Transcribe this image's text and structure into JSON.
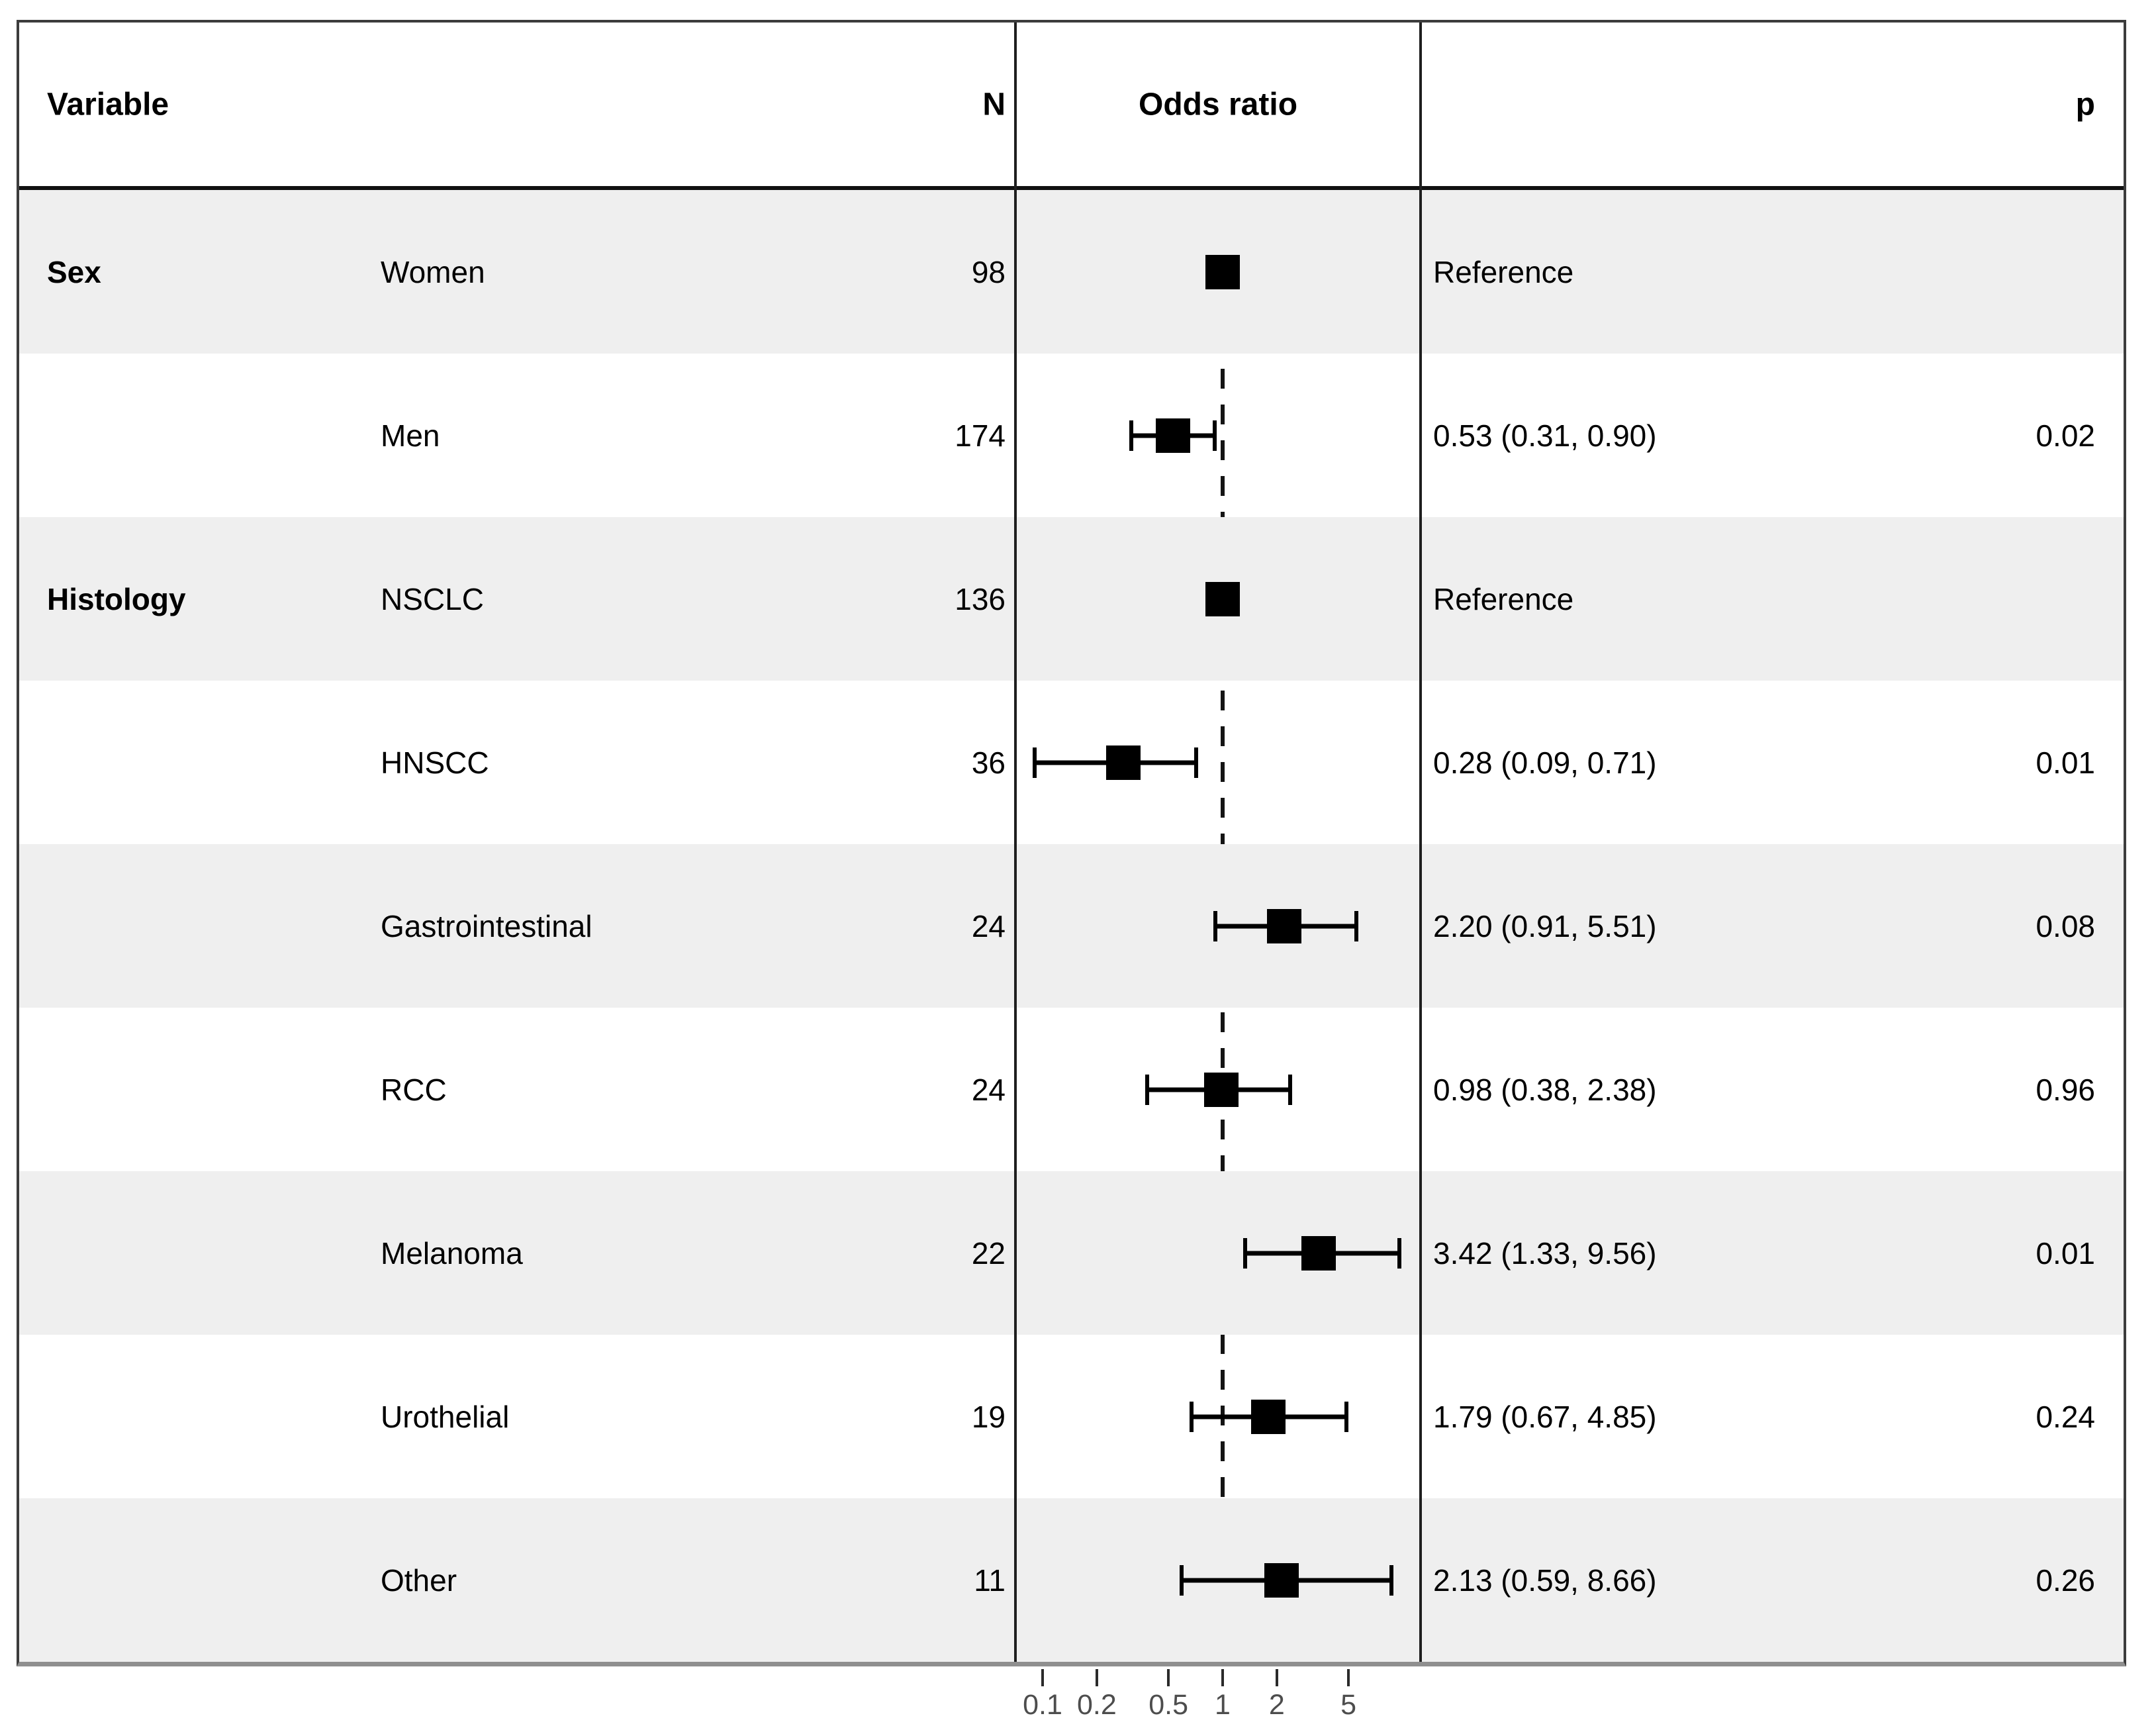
{
  "header": {
    "variable": "Variable",
    "n": "N",
    "odds_ratio": "Odds ratio",
    "p": "p"
  },
  "colors": {
    "zebra": "#efefef",
    "text": "#000000",
    "marker": "#000000",
    "axis_label": "#4d4d4d",
    "axis_line": "#8f8f8f",
    "frame_border": "#3c3c3c",
    "header_separator": "#111111",
    "reference_line": "#141414"
  },
  "chart_data": {
    "type": "scatter",
    "variant": "forest_plot_odds_ratio",
    "title": "",
    "xlabel": "",
    "x_scale": "log10",
    "x_tick_labels": [
      "0.1",
      "0.2",
      "0.5",
      "1",
      "2",
      "5"
    ],
    "x_tick_values": [
      0.1,
      0.2,
      0.5,
      1,
      2,
      5
    ],
    "x_range": [
      0.07,
      12
    ],
    "reference_line": 1,
    "legend": "none",
    "rows": [
      {
        "group": "Sex",
        "label": "Women",
        "n": "98",
        "or": 1,
        "ci_low": null,
        "ci_high": null,
        "estimate": "Reference",
        "p": ""
      },
      {
        "group": "",
        "label": "Men",
        "n": "174",
        "or": 0.53,
        "ci_low": 0.31,
        "ci_high": 0.9,
        "estimate": "0.53 (0.31, 0.90)",
        "p": "0.02"
      },
      {
        "group": "Histology",
        "label": "NSCLC",
        "n": "136",
        "or": 1,
        "ci_low": null,
        "ci_high": null,
        "estimate": "Reference",
        "p": ""
      },
      {
        "group": "",
        "label": "HNSCC",
        "n": "36",
        "or": 0.28,
        "ci_low": 0.09,
        "ci_high": 0.71,
        "estimate": "0.28 (0.09, 0.71)",
        "p": "0.01"
      },
      {
        "group": "",
        "label": "Gastrointestinal",
        "n": "24",
        "or": 2.2,
        "ci_low": 0.91,
        "ci_high": 5.51,
        "estimate": "2.20 (0.91, 5.51)",
        "p": "0.08"
      },
      {
        "group": "",
        "label": "RCC",
        "n": "24",
        "or": 0.98,
        "ci_low": 0.38,
        "ci_high": 2.38,
        "estimate": "0.98 (0.38, 2.38)",
        "p": "0.96"
      },
      {
        "group": "",
        "label": "Melanoma",
        "n": "22",
        "or": 3.42,
        "ci_low": 1.33,
        "ci_high": 9.56,
        "estimate": "3.42 (1.33, 9.56)",
        "p": "0.01"
      },
      {
        "group": "",
        "label": "Urothelial",
        "n": "19",
        "or": 1.79,
        "ci_low": 0.67,
        "ci_high": 4.85,
        "estimate": "1.79 (0.67, 4.85)",
        "p": "0.24"
      },
      {
        "group": "",
        "label": "Other",
        "n": "11",
        "or": 2.13,
        "ci_low": 0.59,
        "ci_high": 8.66,
        "estimate": "2.13 (0.59, 8.66)",
        "p": "0.26"
      }
    ]
  }
}
